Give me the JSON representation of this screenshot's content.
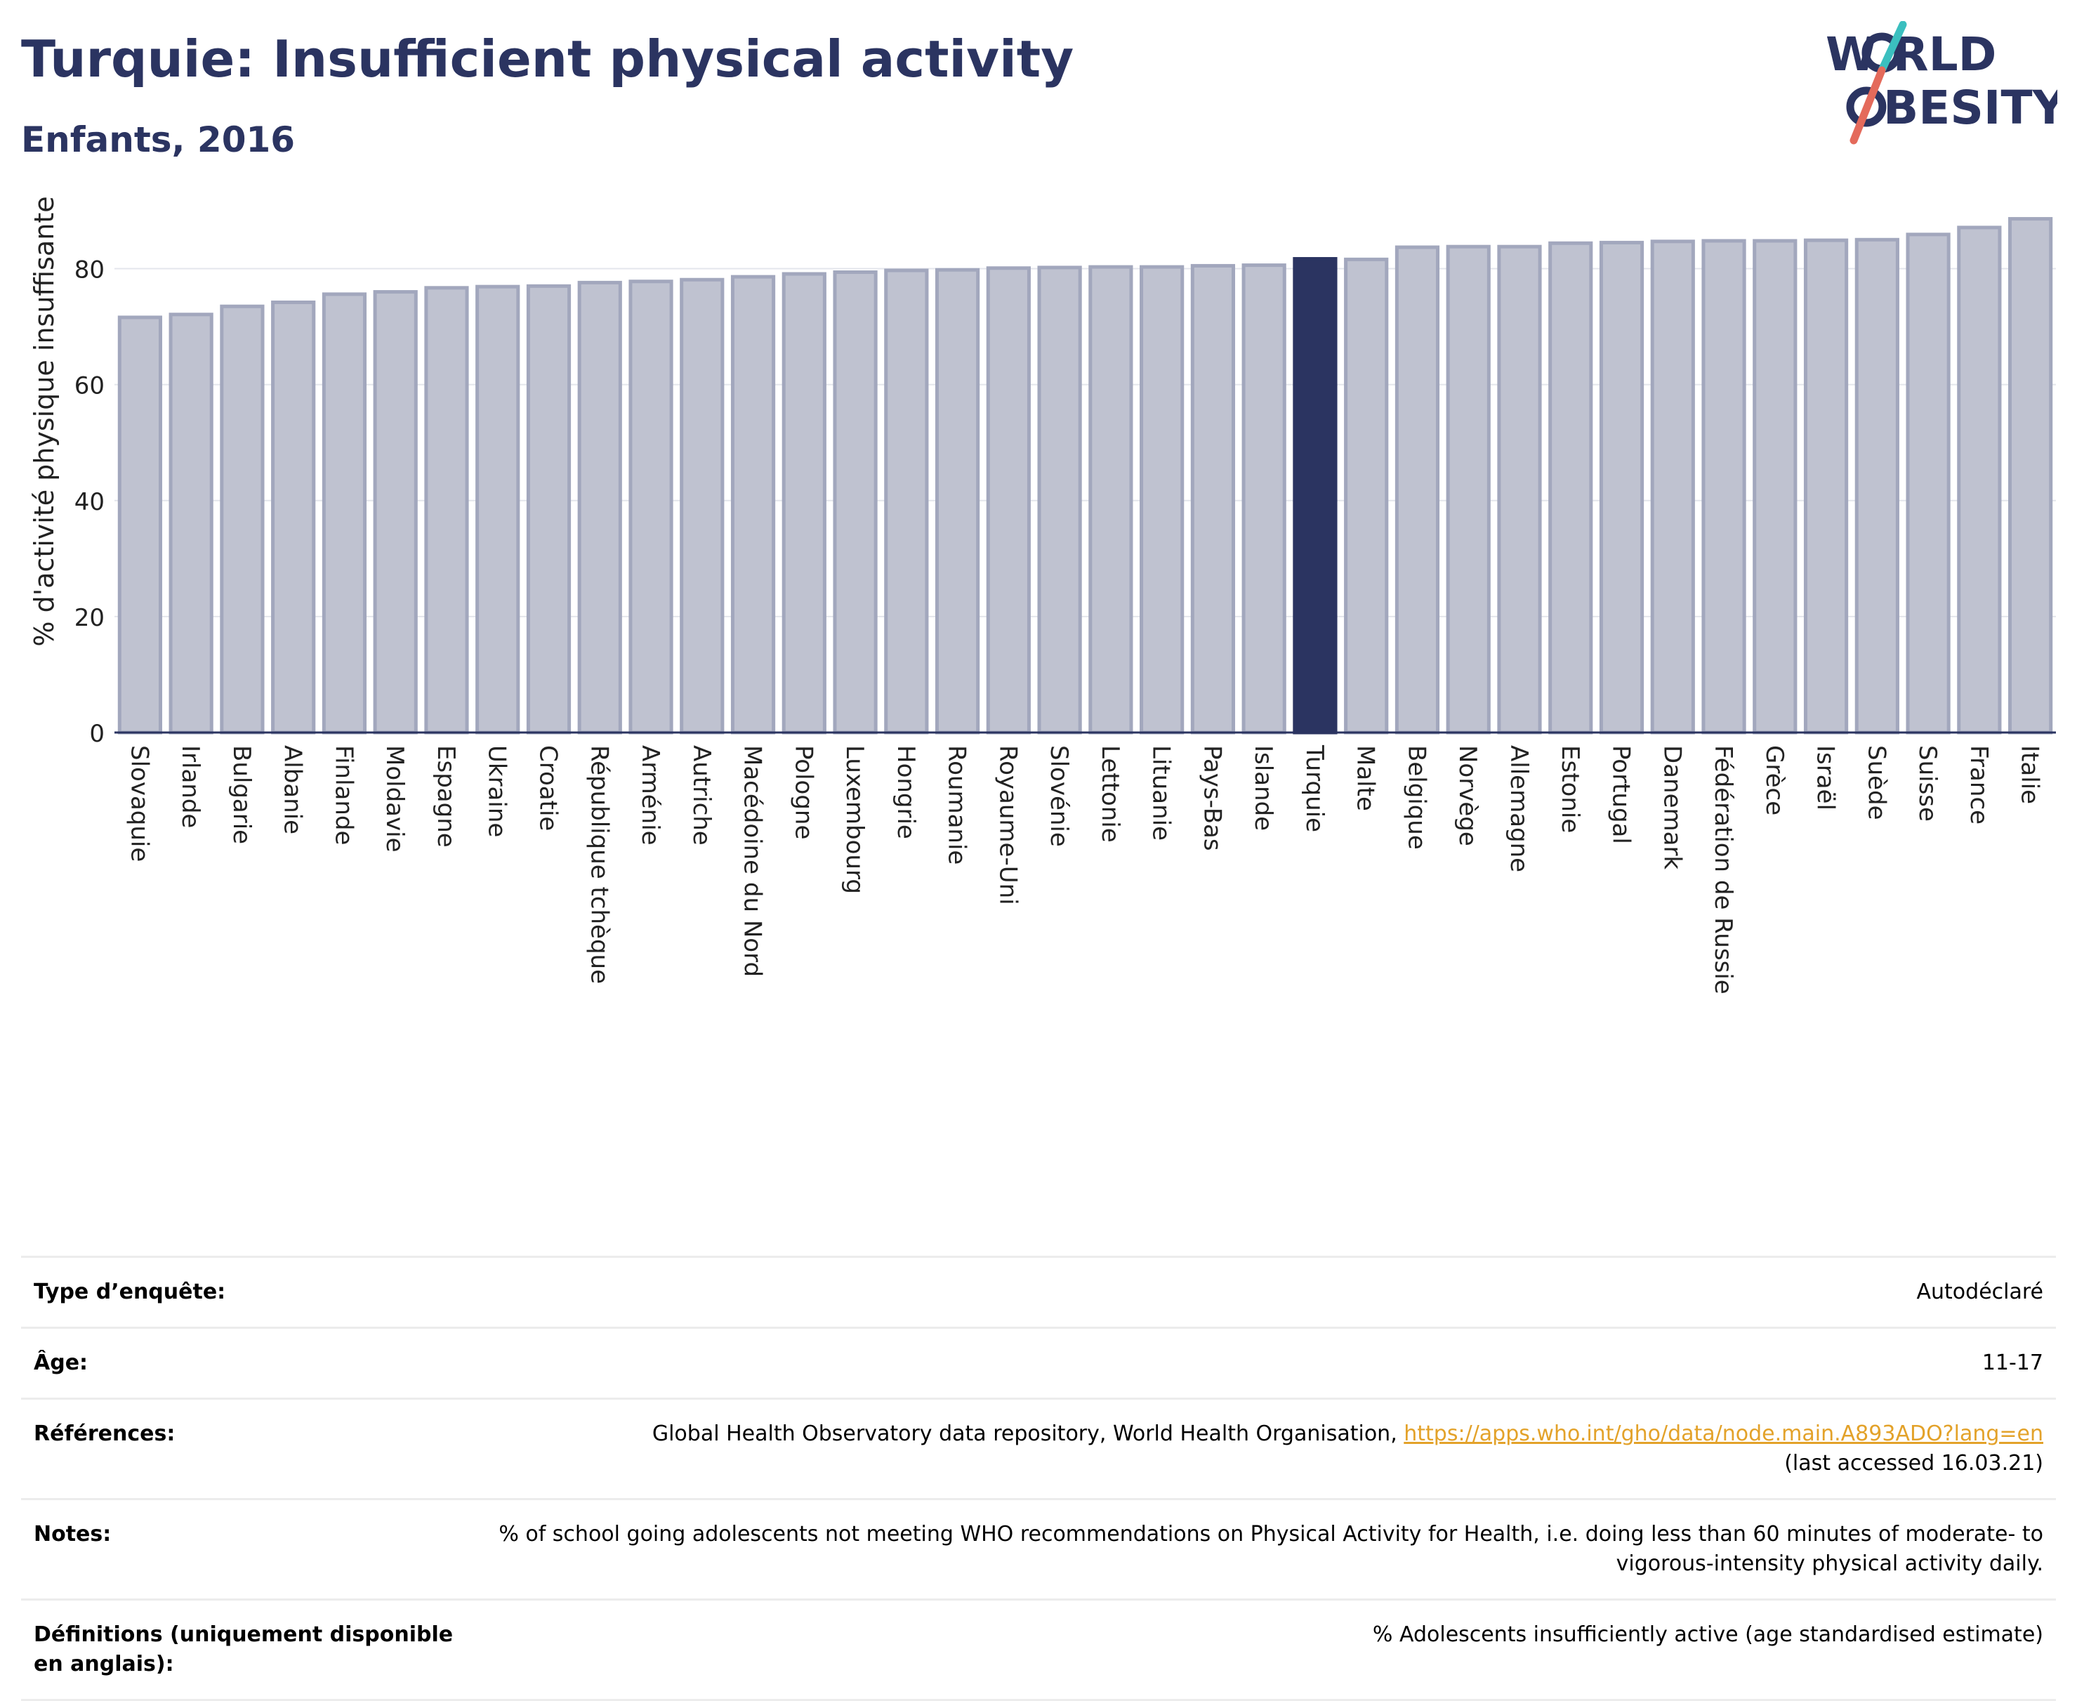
{
  "header": {
    "title": "Turquie: Insufficient physical activity",
    "subtitle": "Enfants, 2016"
  },
  "logo": {
    "line1": "W RLD",
    "line2": "BESITY",
    "text": "WORLD OBESITY",
    "colors": {
      "text": "#2b3461",
      "teal": "#3bbfbf",
      "coral": "#e46a5b"
    }
  },
  "chart_data": {
    "type": "bar",
    "title": "Turquie: Insufficient physical activity",
    "subtitle": "Enfants, 2016",
    "ylabel": "% d'activité physique insuffisante",
    "xlabel": "",
    "ylim": [
      0,
      90
    ],
    "yticks": [
      0,
      20,
      40,
      60,
      80
    ],
    "grid": true,
    "highlight": "Turquie",
    "colors": {
      "bar": "#bfc2d0",
      "bar_border": "#a2a7bd",
      "highlight": "#2b3461",
      "grid": "#e4e6ec"
    },
    "categories": [
      "Slovaquie",
      "Irlande",
      "Bulgarie",
      "Albanie",
      "Finlande",
      "Moldavie",
      "Espagne",
      "Ukraine",
      "Croatie",
      "République tchèque",
      "Arménie",
      "Autriche",
      "Macédoine du Nord",
      "Pologne",
      "Luxembourg",
      "Hongrie",
      "Roumanie",
      "Royaume-Uni",
      "Slovénie",
      "Lettonie",
      "Lituanie",
      "Pays-Bas",
      "Islande",
      "Turquie",
      "Malte",
      "Belgique",
      "Norvège",
      "Allemagne",
      "Estonie",
      "Portugal",
      "Danemark",
      "Fédération de Russie",
      "Grèce",
      "Israël",
      "Suède",
      "Suisse",
      "France",
      "Italie"
    ],
    "values": [
      71.6,
      72.1,
      73.5,
      74.2,
      75.6,
      76.0,
      76.7,
      76.9,
      77.0,
      77.6,
      77.8,
      78.1,
      78.6,
      79.1,
      79.4,
      79.7,
      79.8,
      80.1,
      80.2,
      80.3,
      80.3,
      80.5,
      80.6,
      81.7,
      81.6,
      83.7,
      83.8,
      83.8,
      84.4,
      84.5,
      84.7,
      84.8,
      84.8,
      84.9,
      85.0,
      85.9,
      87.1,
      88.6
    ]
  },
  "info": {
    "rows": [
      {
        "label": "Type d’enquête:",
        "value": "Autodéclaré"
      },
      {
        "label": "Âge:",
        "value": "11-17"
      },
      {
        "label": "Références:",
        "value_prefix": "Global Health Observatory data repository, World Health Organisation, ",
        "link": "https://apps.who.int/gho/data/node.main.A893ADO?lang=en",
        "value_suffix": "(last accessed 16.03.21)"
      },
      {
        "label": "Notes:",
        "value": "% of school going adolescents not meeting WHO recommendations on Physical Activity for Health, i.e. doing less than 60 minutes of moderate- to vigorous-intensity physical activity daily."
      },
      {
        "label": "Définitions (uniquement disponible en anglais):",
        "value": "% Adolescents insufficiently active (age standardised estimate)"
      }
    ]
  }
}
